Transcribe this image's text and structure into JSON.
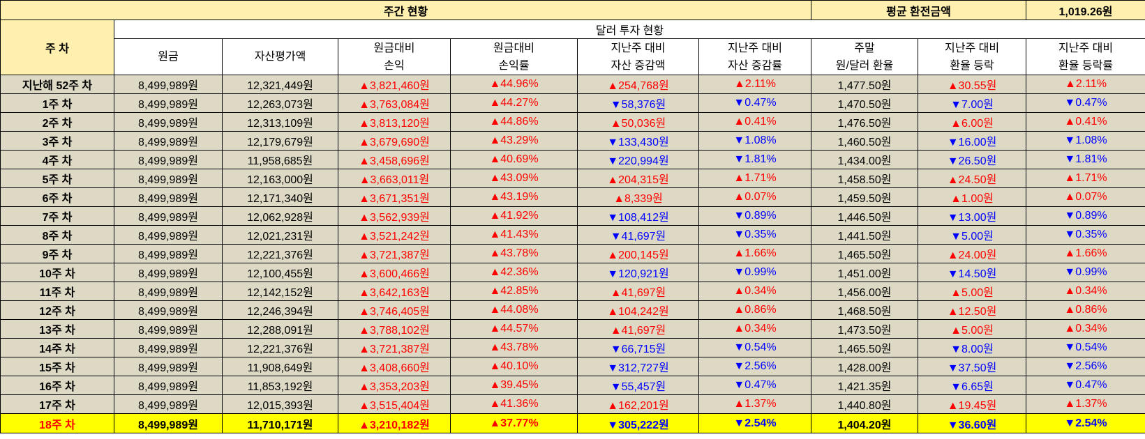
{
  "header": {
    "weekly_status": "주간 현황",
    "avg_exchange_label": "평균 환전금액",
    "avg_exchange_value": "1,019.26원",
    "week_col": "주 차",
    "dollar_status": "달러 투자 현황"
  },
  "columns": [
    [
      "원금"
    ],
    [
      "자산평가액"
    ],
    [
      "원금대비",
      "손익"
    ],
    [
      "원금대비",
      "손익률"
    ],
    [
      "지난주 대비",
      "자산 증감액"
    ],
    [
      "지난주 대비",
      "자산 증감률"
    ],
    [
      "주말",
      "원/달러 환율"
    ],
    [
      "지난주 대비",
      "환율 등락"
    ],
    [
      "지난주 대비",
      "환율 등락률"
    ]
  ],
  "colors": {
    "header_bg": "#fff0b0",
    "row_bg": "#ddd9c4",
    "current_bg": "#ffff00",
    "up": "#ff0000",
    "down": "#0000ff"
  },
  "rows": [
    {
      "week": "지난해 52주 차",
      "principal": "8,499,989원",
      "asset": "12,321,449원",
      "pnl": "▲3,821,460원",
      "pnl_rate": "▲44.96%",
      "asset_chg": "▲254,768원",
      "asset_chg_rate": "▲2.11%",
      "fx": "1,477.50원",
      "fx_chg": "▲30.55원",
      "fx_chg_rate": "▲2.11%",
      "dir": [
        "up",
        "up",
        "up",
        "up",
        "up",
        "up"
      ]
    },
    {
      "week": "1주 차",
      "principal": "8,499,989원",
      "asset": "12,263,073원",
      "pnl": "▲3,763,084원",
      "pnl_rate": "▲44.27%",
      "asset_chg": "▼58,376원",
      "asset_chg_rate": "▼0.47%",
      "fx": "1,470.50원",
      "fx_chg": "▼7.00원",
      "fx_chg_rate": "▼0.47%",
      "dir": [
        "up",
        "up",
        "down",
        "down",
        "down",
        "down"
      ]
    },
    {
      "week": "2주 차",
      "principal": "8,499,989원",
      "asset": "12,313,109원",
      "pnl": "▲3,813,120원",
      "pnl_rate": "▲44.86%",
      "asset_chg": "▲50,036원",
      "asset_chg_rate": "▲0.41%",
      "fx": "1,476.50원",
      "fx_chg": "▲6.00원",
      "fx_chg_rate": "▲0.41%",
      "dir": [
        "up",
        "up",
        "up",
        "up",
        "up",
        "up"
      ]
    },
    {
      "week": "3주 차",
      "principal": "8,499,989원",
      "asset": "12,179,679원",
      "pnl": "▲3,679,690원",
      "pnl_rate": "▲43.29%",
      "asset_chg": "▼133,430원",
      "asset_chg_rate": "▼1.08%",
      "fx": "1,460.50원",
      "fx_chg": "▼16.00원",
      "fx_chg_rate": "▼1.08%",
      "dir": [
        "up",
        "up",
        "down",
        "down",
        "down",
        "down"
      ]
    },
    {
      "week": "4주 차",
      "principal": "8,499,989원",
      "asset": "11,958,685원",
      "pnl": "▲3,458,696원",
      "pnl_rate": "▲40.69%",
      "asset_chg": "▼220,994원",
      "asset_chg_rate": "▼1.81%",
      "fx": "1,434.00원",
      "fx_chg": "▼26.50원",
      "fx_chg_rate": "▼1.81%",
      "dir": [
        "up",
        "up",
        "down",
        "down",
        "down",
        "down"
      ]
    },
    {
      "week": "5주 차",
      "principal": "8,499,989원",
      "asset": "12,163,000원",
      "pnl": "▲3,663,011원",
      "pnl_rate": "▲43.09%",
      "asset_chg": "▲204,315원",
      "asset_chg_rate": "▲1.71%",
      "fx": "1,458.50원",
      "fx_chg": "▲24.50원",
      "fx_chg_rate": "▲1.71%",
      "dir": [
        "up",
        "up",
        "up",
        "up",
        "up",
        "up"
      ]
    },
    {
      "week": "6주 차",
      "principal": "8,499,989원",
      "asset": "12,171,340원",
      "pnl": "▲3,671,351원",
      "pnl_rate": "▲43.19%",
      "asset_chg": "▲8,339원",
      "asset_chg_rate": "▲0.07%",
      "fx": "1,459.50원",
      "fx_chg": "▲1.00원",
      "fx_chg_rate": "▲0.07%",
      "dir": [
        "up",
        "up",
        "up",
        "up",
        "up",
        "up"
      ]
    },
    {
      "week": "7주 차",
      "principal": "8,499,989원",
      "asset": "12,062,928원",
      "pnl": "▲3,562,939원",
      "pnl_rate": "▲41.92%",
      "asset_chg": "▼108,412원",
      "asset_chg_rate": "▼0.89%",
      "fx": "1,446.50원",
      "fx_chg": "▼13.00원",
      "fx_chg_rate": "▼0.89%",
      "dir": [
        "up",
        "up",
        "down",
        "down",
        "down",
        "down"
      ]
    },
    {
      "week": "8주 차",
      "principal": "8,499,989원",
      "asset": "12,021,231원",
      "pnl": "▲3,521,242원",
      "pnl_rate": "▲41.43%",
      "asset_chg": "▼41,697원",
      "asset_chg_rate": "▼0.35%",
      "fx": "1,441.50원",
      "fx_chg": "▼5.00원",
      "fx_chg_rate": "▼0.35%",
      "dir": [
        "up",
        "up",
        "down",
        "down",
        "down",
        "down"
      ]
    },
    {
      "week": "9주 차",
      "principal": "8,499,989원",
      "asset": "12,221,376원",
      "pnl": "▲3,721,387원",
      "pnl_rate": "▲43.78%",
      "asset_chg": "▲200,145원",
      "asset_chg_rate": "▲1.66%",
      "fx": "1,465.50원",
      "fx_chg": "▲24.00원",
      "fx_chg_rate": "▲1.66%",
      "dir": [
        "up",
        "up",
        "up",
        "up",
        "up",
        "up"
      ]
    },
    {
      "week": "10주 차",
      "principal": "8,499,989원",
      "asset": "12,100,455원",
      "pnl": "▲3,600,466원",
      "pnl_rate": "▲42.36%",
      "asset_chg": "▼120,921원",
      "asset_chg_rate": "▼0.99%",
      "fx": "1,451.00원",
      "fx_chg": "▼14.50원",
      "fx_chg_rate": "▼0.99%",
      "dir": [
        "up",
        "up",
        "down",
        "down",
        "down",
        "down"
      ]
    },
    {
      "week": "11주 차",
      "principal": "8,499,989원",
      "asset": "12,142,152원",
      "pnl": "▲3,642,163원",
      "pnl_rate": "▲42.85%",
      "asset_chg": "▲41,697원",
      "asset_chg_rate": "▲0.34%",
      "fx": "1,456.00원",
      "fx_chg": "▲5.00원",
      "fx_chg_rate": "▲0.34%",
      "dir": [
        "up",
        "up",
        "up",
        "up",
        "up",
        "up"
      ]
    },
    {
      "week": "12주 차",
      "principal": "8,499,989원",
      "asset": "12,246,394원",
      "pnl": "▲3,746,405원",
      "pnl_rate": "▲44.08%",
      "asset_chg": "▲104,242원",
      "asset_chg_rate": "▲0.86%",
      "fx": "1,468.50원",
      "fx_chg": "▲12.50원",
      "fx_chg_rate": "▲0.86%",
      "dir": [
        "up",
        "up",
        "up",
        "up",
        "up",
        "up"
      ]
    },
    {
      "week": "13주 차",
      "principal": "8,499,989원",
      "asset": "12,288,091원",
      "pnl": "▲3,788,102원",
      "pnl_rate": "▲44.57%",
      "asset_chg": "▲41,697원",
      "asset_chg_rate": "▲0.34%",
      "fx": "1,473.50원",
      "fx_chg": "▲5.00원",
      "fx_chg_rate": "▲0.34%",
      "dir": [
        "up",
        "up",
        "up",
        "up",
        "up",
        "up"
      ]
    },
    {
      "week": "14주 차",
      "principal": "8,499,989원",
      "asset": "12,221,376원",
      "pnl": "▲3,721,387원",
      "pnl_rate": "▲43.78%",
      "asset_chg": "▼66,715원",
      "asset_chg_rate": "▼0.54%",
      "fx": "1,465.50원",
      "fx_chg": "▼8.00원",
      "fx_chg_rate": "▼0.54%",
      "dir": [
        "up",
        "up",
        "down",
        "down",
        "down",
        "down"
      ]
    },
    {
      "week": "15주 차",
      "principal": "8,499,989원",
      "asset": "11,908,649원",
      "pnl": "▲3,408,660원",
      "pnl_rate": "▲40.10%",
      "asset_chg": "▼312,727원",
      "asset_chg_rate": "▼2.56%",
      "fx": "1,428.00원",
      "fx_chg": "▼37.50원",
      "fx_chg_rate": "▼2.56%",
      "dir": [
        "up",
        "up",
        "down",
        "down",
        "down",
        "down"
      ]
    },
    {
      "week": "16주 차",
      "principal": "8,499,989원",
      "asset": "11,853,192원",
      "pnl": "▲3,353,203원",
      "pnl_rate": "▲39.45%",
      "asset_chg": "▼55,457원",
      "asset_chg_rate": "▼0.47%",
      "fx": "1,421.35원",
      "fx_chg": "▼6.65원",
      "fx_chg_rate": "▼0.47%",
      "dir": [
        "up",
        "up",
        "down",
        "down",
        "down",
        "down"
      ]
    },
    {
      "week": "17주 차",
      "principal": "8,499,989원",
      "asset": "12,015,393원",
      "pnl": "▲3,515,404원",
      "pnl_rate": "▲41.36%",
      "asset_chg": "▲162,201원",
      "asset_chg_rate": "▲1.37%",
      "fx": "1,440.80원",
      "fx_chg": "▲19.45원",
      "fx_chg_rate": "▲1.37%",
      "dir": [
        "up",
        "up",
        "up",
        "up",
        "up",
        "up"
      ]
    },
    {
      "week": "18주 차",
      "principal": "8,499,989원",
      "asset": "11,710,171원",
      "pnl": "▲3,210,182원",
      "pnl_rate": "▲37.77%",
      "asset_chg": "▼305,222원",
      "asset_chg_rate": "▼2.54%",
      "fx": "1,404.20원",
      "fx_chg": "▼36.60원",
      "fx_chg_rate": "▼2.54%",
      "dir": [
        "up",
        "up",
        "down",
        "down",
        "down",
        "down"
      ],
      "current": true
    }
  ]
}
